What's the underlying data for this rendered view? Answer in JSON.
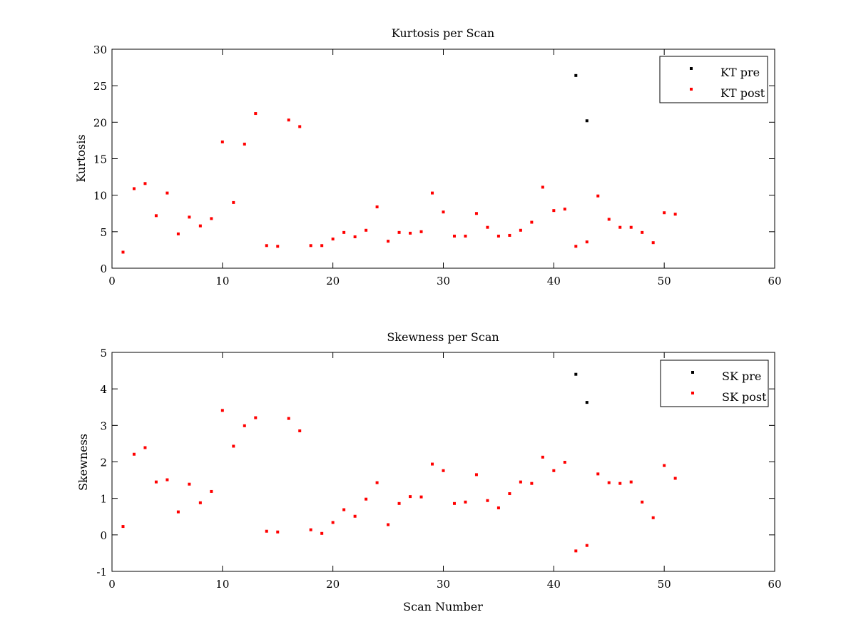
{
  "chart_data": [
    {
      "type": "scatter",
      "title": "Kurtosis per Scan",
      "xlabel": "",
      "ylabel": "Kurtosis",
      "xlim": [
        0,
        60
      ],
      "ylim": [
        0,
        30
      ],
      "xticks": [
        0,
        10,
        20,
        30,
        40,
        50,
        60
      ],
      "yticks": [
        0,
        5,
        10,
        15,
        20,
        25,
        30
      ],
      "grid": false,
      "legend_position": "top-right",
      "series": [
        {
          "name": "KT pre",
          "color": "#000000",
          "x": [
            42,
            43
          ],
          "y": [
            26.4,
            20.2
          ]
        },
        {
          "name": "KT post",
          "color": "#ff0000",
          "x": [
            1,
            2,
            3,
            4,
            5,
            6,
            7,
            8,
            9,
            10,
            11,
            12,
            13,
            14,
            15,
            16,
            17,
            18,
            19,
            20,
            21,
            22,
            23,
            24,
            25,
            26,
            27,
            28,
            29,
            30,
            31,
            32,
            33,
            34,
            35,
            36,
            37,
            38,
            39,
            40,
            41,
            42,
            43,
            44,
            45,
            46,
            47,
            48,
            49,
            50,
            51
          ],
          "y": [
            2.2,
            10.9,
            11.6,
            7.2,
            10.3,
            4.7,
            7.0,
            5.8,
            6.8,
            17.3,
            9.0,
            17.0,
            21.2,
            3.1,
            3.0,
            20.3,
            19.4,
            3.1,
            3.1,
            4.0,
            4.9,
            4.3,
            5.2,
            8.4,
            3.7,
            4.9,
            4.8,
            5.0,
            10.3,
            7.7,
            4.4,
            4.4,
            7.5,
            5.6,
            4.4,
            4.5,
            5.2,
            6.3,
            11.1,
            7.9,
            8.1,
            3.0,
            3.6,
            9.9,
            6.7,
            5.6,
            5.6,
            4.9,
            3.5,
            7.6,
            7.4
          ]
        }
      ]
    },
    {
      "type": "scatter",
      "title": "Skewness per Scan",
      "xlabel": "Scan Number",
      "ylabel": "Skewness",
      "xlim": [
        0,
        60
      ],
      "ylim": [
        -1,
        5
      ],
      "xticks": [
        0,
        10,
        20,
        30,
        40,
        50,
        60
      ],
      "yticks": [
        -1,
        0,
        1,
        2,
        3,
        4,
        5
      ],
      "grid": false,
      "legend_position": "top-right",
      "series": [
        {
          "name": "SK pre",
          "color": "#000000",
          "x": [
            42,
            43
          ],
          "y": [
            4.4,
            3.63
          ]
        },
        {
          "name": "SK post",
          "color": "#ff0000",
          "x": [
            1,
            2,
            3,
            4,
            5,
            6,
            7,
            8,
            9,
            10,
            11,
            12,
            13,
            14,
            15,
            16,
            17,
            18,
            19,
            20,
            21,
            22,
            23,
            24,
            25,
            26,
            27,
            28,
            29,
            30,
            31,
            32,
            33,
            34,
            35,
            36,
            37,
            38,
            39,
            40,
            41,
            42,
            43,
            44,
            45,
            46,
            47,
            48,
            49,
            50,
            51
          ],
          "y": [
            0.23,
            2.21,
            2.39,
            1.45,
            1.51,
            0.63,
            1.39,
            0.88,
            1.19,
            3.41,
            2.43,
            2.99,
            3.21,
            0.1,
            0.08,
            3.19,
            2.85,
            0.14,
            0.04,
            0.34,
            0.69,
            0.51,
            0.98,
            1.43,
            0.28,
            0.86,
            1.05,
            1.04,
            1.94,
            1.76,
            0.86,
            0.9,
            1.65,
            0.94,
            0.74,
            1.13,
            1.45,
            1.41,
            2.13,
            1.76,
            1.99,
            -0.44,
            -0.29,
            1.67,
            1.43,
            1.41,
            1.45,
            0.9,
            0.47,
            1.9,
            1.55
          ]
        }
      ]
    }
  ]
}
